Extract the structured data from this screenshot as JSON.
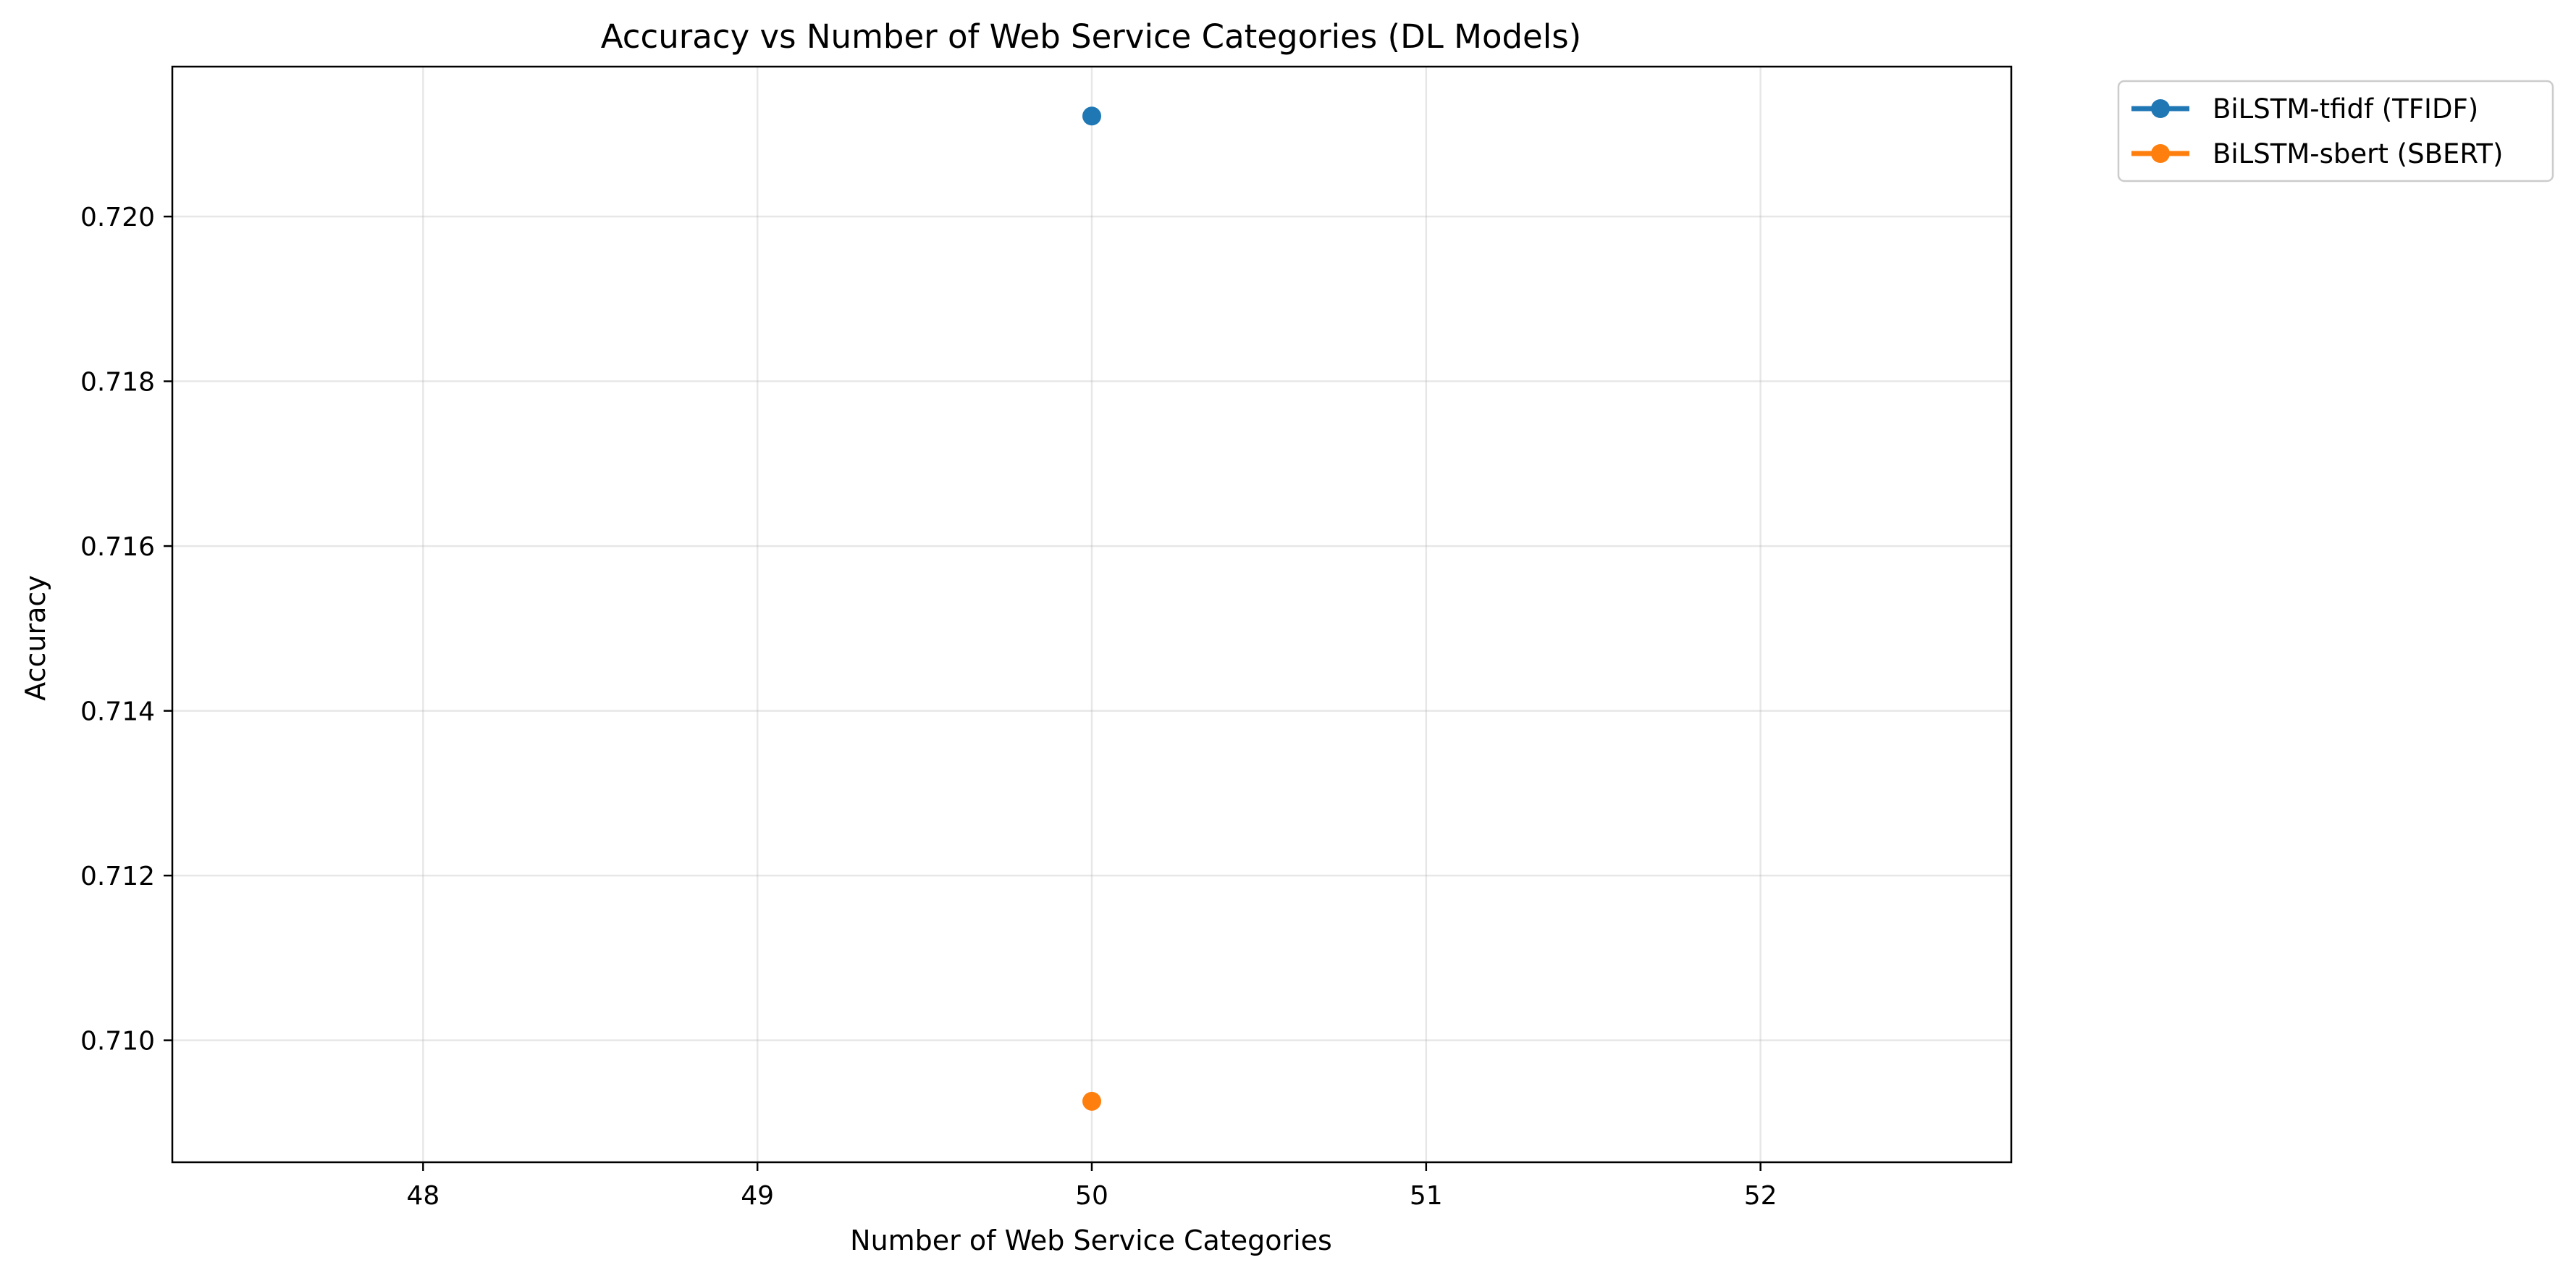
{
  "chart_data": {
    "type": "scatter",
    "title": "Accuracy vs Number of Web Service Categories (DL Models)",
    "xlabel": "Number of Web Service Categories",
    "ylabel": "Accuracy",
    "xlim": [
      47.25,
      52.75
    ],
    "ylim": [
      0.70852,
      0.72182
    ],
    "xticks": [
      48,
      49,
      50,
      51,
      52
    ],
    "xtick_labels": [
      "48",
      "49",
      "50",
      "51",
      "52"
    ],
    "yticks": [
      0.71,
      0.712,
      0.714,
      0.716,
      0.718,
      0.72
    ],
    "ytick_labels": [
      "0.710",
      "0.712",
      "0.714",
      "0.716",
      "0.718",
      "0.720"
    ],
    "grid": true,
    "legend_position": "outside upper right",
    "series": [
      {
        "name": "BiLSTM-tfidf (TFIDF)",
        "color": "#1f77b4",
        "x": [
          50
        ],
        "y": [
          0.72122
        ]
      },
      {
        "name": "BiLSTM-sbert (SBERT)",
        "color": "#ff7f0e",
        "x": [
          50
        ],
        "y": [
          0.70926
        ]
      }
    ]
  }
}
